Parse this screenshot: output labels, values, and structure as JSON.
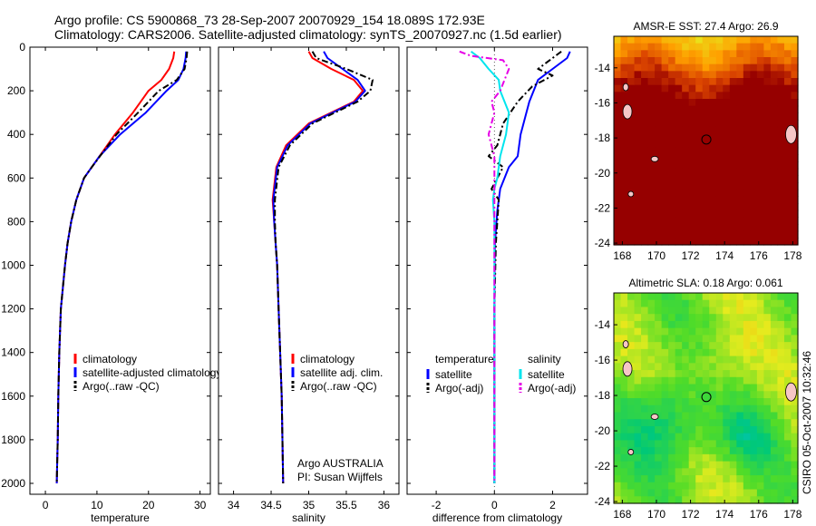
{
  "header": {
    "line1": "Argo profile: CS 5900868_73 28-Sep-2007 20070929_154 18.089S 172.93E",
    "line2": "Climatology: CARS2006. Satellite-adjusted climatology: synTS_20070927.nc (1.5d earlier)"
  },
  "side_label": "CSIRO 05-Oct-2007 10:32:46",
  "colors": {
    "climatology": "#ff0000",
    "satellite": "#0000ff",
    "argo": "#000000",
    "salinity_satellite": "#00e5ee",
    "salinity_argo": "#e600e6"
  },
  "chart_data": [
    {
      "type": "line",
      "xlabel": "temperature",
      "ylabel": "",
      "xlim": [
        -3,
        32
      ],
      "ylim": [
        2050,
        0
      ],
      "y_reversed": true,
      "xticks": [
        0,
        10,
        20,
        30
      ],
      "yticks": [
        0,
        200,
        400,
        600,
        800,
        1000,
        1200,
        1400,
        1600,
        1800,
        2000
      ],
      "legend": {
        "position": "lower-right",
        "entries": [
          "climatology",
          "satellite-adjusted climatology",
          "Argo(..raw -QC)"
        ]
      },
      "series": [
        {
          "name": "climatology",
          "style": "solid",
          "x": [
            25.0,
            24.8,
            24.0,
            22.5,
            20.0,
            17.0,
            13.5,
            10.5,
            9.0,
            7.5,
            6.0,
            5.0,
            4.3,
            3.8,
            3.4,
            3.0,
            2.7,
            2.5,
            2.4,
            2.3,
            2.2
          ],
          "y": [
            20,
            50,
            100,
            150,
            200,
            300,
            400,
            500,
            550,
            600,
            700,
            800,
            900,
            1000,
            1100,
            1200,
            1400,
            1600,
            1800,
            1900,
            2000
          ]
        },
        {
          "name": "satellite-adjusted climatology",
          "style": "solid",
          "x": [
            27.3,
            27.2,
            26.8,
            25.8,
            23.5,
            19.5,
            14.5,
            10.5,
            9.0,
            7.5,
            6.0,
            5.0,
            4.3,
            3.8,
            3.4,
            3.0,
            2.7,
            2.5,
            2.4,
            2.3,
            2.2
          ],
          "y": [
            20,
            50,
            100,
            150,
            200,
            300,
            400,
            500,
            550,
            600,
            700,
            800,
            900,
            1000,
            1100,
            1200,
            1400,
            1600,
            1800,
            1900,
            2000
          ]
        },
        {
          "name": "Argo(..raw -QC)",
          "style": "dashed",
          "x": [
            27.5,
            27.4,
            27.0,
            25.5,
            22.0,
            18.0,
            13.8,
            10.6,
            9.0,
            7.5,
            6.0,
            5.0,
            4.3,
            3.8,
            3.4,
            3.0,
            2.7,
            2.5,
            2.4,
            2.3,
            2.2
          ],
          "y": [
            20,
            50,
            100,
            150,
            200,
            300,
            400,
            500,
            550,
            600,
            700,
            800,
            900,
            1000,
            1100,
            1200,
            1400,
            1600,
            1800,
            1900,
            2000
          ]
        }
      ]
    },
    {
      "type": "line",
      "xlabel": "salinity",
      "ylabel": "",
      "xlim": [
        33.8,
        36.2
      ],
      "ylim": [
        2050,
        0
      ],
      "y_reversed": true,
      "xticks": [
        34,
        34.5,
        35,
        35.5,
        36
      ],
      "xtick_labels": [
        "34",
        "34.5",
        "35",
        "35.5",
        "36"
      ],
      "legend": {
        "position": "lower-right",
        "entries": [
          "climatology",
          "satellite adj. clim.",
          "Argo(..raw -QC)"
        ]
      },
      "annotations": [
        "Argo AUSTRALIA",
        "PI: Susan Wijffels"
      ],
      "series": [
        {
          "name": "climatology",
          "style": "solid",
          "x": [
            35.0,
            35.05,
            35.3,
            35.6,
            35.72,
            35.6,
            35.3,
            35.0,
            34.7,
            34.57,
            34.52,
            34.54,
            34.56,
            34.58,
            34.6,
            34.62,
            34.64,
            34.65,
            34.66
          ],
          "y": [
            20,
            50,
            100,
            150,
            200,
            250,
            300,
            350,
            450,
            550,
            700,
            800,
            900,
            1000,
            1200,
            1400,
            1600,
            1800,
            2000
          ]
        },
        {
          "name": "satellite adj. clim.",
          "style": "solid",
          "x": [
            35.2,
            35.25,
            35.45,
            35.65,
            35.75,
            35.62,
            35.32,
            35.02,
            34.72,
            34.58,
            34.53,
            34.54,
            34.56,
            34.58,
            34.6,
            34.62,
            34.64,
            34.65,
            34.66
          ],
          "y": [
            20,
            50,
            100,
            150,
            200,
            250,
            300,
            350,
            450,
            550,
            700,
            800,
            900,
            1000,
            1200,
            1400,
            1600,
            1800,
            2000
          ]
        },
        {
          "name": "Argo(..raw -QC)",
          "style": "dashed",
          "x": [
            35.05,
            35.1,
            35.5,
            35.85,
            35.82,
            35.65,
            35.35,
            35.05,
            34.75,
            34.6,
            34.55,
            34.55,
            34.56,
            34.58,
            34.6,
            34.62,
            34.64,
            34.65,
            34.66
          ],
          "y": [
            20,
            50,
            100,
            150,
            200,
            250,
            300,
            350,
            450,
            550,
            700,
            800,
            900,
            1000,
            1200,
            1400,
            1600,
            1800,
            2000
          ]
        }
      ]
    },
    {
      "type": "line",
      "xlabel": "difference from climatology",
      "ylabel": "",
      "xlim": [
        -3,
        3.2
      ],
      "ylim": [
        2050,
        0
      ],
      "y_reversed": true,
      "xticks": [
        -2,
        0,
        2
      ],
      "legend": {
        "position": "lower-center",
        "groups": [
          {
            "title": "temperature",
            "entries": [
              "satellite",
              "Argo(-adj)"
            ]
          },
          {
            "title": "salinity",
            "entries": [
              "satellite",
              "Argo(-adj)"
            ]
          }
        ]
      },
      "series": [
        {
          "name": "temperature satellite",
          "style": "solid",
          "x": [
            2.6,
            2.5,
            2.0,
            1.5,
            1.2,
            1.0,
            0.9,
            0.8,
            0.5,
            0.2,
            0.1,
            0.02,
            0.0,
            0.0
          ],
          "y": [
            20,
            50,
            100,
            150,
            250,
            350,
            400,
            500,
            550,
            650,
            750,
            900,
            1200,
            2000
          ]
        },
        {
          "name": "temperature Argo(-adj)",
          "style": "dashed",
          "x": [
            2.3,
            2.0,
            1.5,
            2.0,
            1.3,
            0.8,
            0.3,
            0.1,
            -0.2,
            0.3,
            0.1,
            -0.1,
            0.15,
            0.05,
            0.0,
            0.0
          ],
          "y": [
            20,
            50,
            100,
            130,
            180,
            250,
            350,
            450,
            500,
            550,
            600,
            650,
            700,
            900,
            1200,
            2000
          ]
        },
        {
          "name": "salinity satellite",
          "style": "solid",
          "x": [
            -0.8,
            -0.5,
            -0.2,
            0.15,
            0.2,
            0.5,
            0.4,
            0.2,
            0.1,
            0.0,
            -0.05,
            0.0,
            0.0,
            0.0
          ],
          "y": [
            20,
            50,
            100,
            150,
            200,
            300,
            400,
            500,
            600,
            650,
            700,
            800,
            1200,
            2000
          ]
        },
        {
          "name": "salinity Argo(-adj)",
          "style": "dashed",
          "x": [
            -1.2,
            -0.8,
            0.3,
            0.5,
            0.2,
            -0.1,
            0.0,
            -0.2,
            0.0,
            0.0,
            0.0,
            0.0
          ],
          "y": [
            20,
            40,
            60,
            100,
            200,
            250,
            300,
            400,
            500,
            700,
            1200,
            2000
          ]
        }
      ]
    },
    {
      "type": "heatmap",
      "title": "AMSR-E SST: 27.4 Argo: 26.9",
      "xlim": [
        167.5,
        178.3
      ],
      "ylim": [
        -24.1,
        -12.2
      ],
      "xticks": [
        168,
        170,
        172,
        174,
        176,
        178
      ],
      "yticks": [
        -14,
        -16,
        -18,
        -20,
        -22,
        -24
      ],
      "marker": {
        "lon": 172.93,
        "lat": -18.089
      }
    },
    {
      "type": "heatmap",
      "title": "Altimetric SLA: 0.18 Argo: 0.061",
      "xlim": [
        167.5,
        178.3
      ],
      "ylim": [
        -24.1,
        -12.2
      ],
      "xticks": [
        168,
        170,
        172,
        174,
        176,
        178
      ],
      "yticks": [
        -14,
        -16,
        -18,
        -20,
        -22,
        -24
      ],
      "marker": {
        "lon": 172.93,
        "lat": -18.089
      }
    }
  ]
}
